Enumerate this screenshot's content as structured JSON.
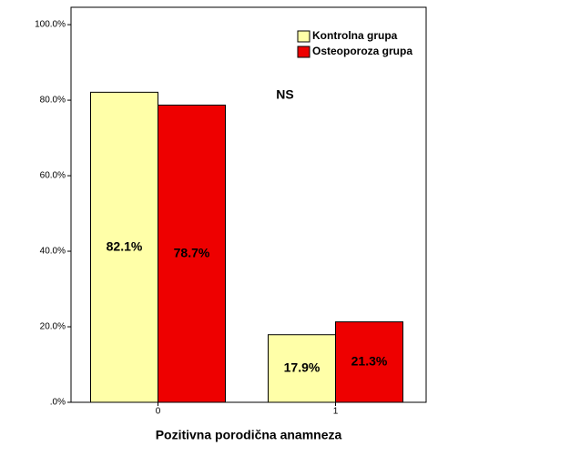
{
  "chart_data": {
    "type": "bar",
    "xlabel": "Pozitivna porodična anamneza",
    "annotation": "NS",
    "categories": [
      "0",
      "1"
    ],
    "series": [
      {
        "name": "Kontrolna grupa",
        "color": "#ffffa8",
        "values": [
          82.1,
          17.9
        ],
        "value_labels": [
          "82.1%",
          "17.9%"
        ]
      },
      {
        "name": "Osteoporoza grupa",
        "color": "#ee0000",
        "values": [
          78.7,
          21.3
        ],
        "value_labels": [
          "78.7%",
          "21.3%"
        ]
      }
    ],
    "ylim": [
      0,
      104.6
    ],
    "yticks": [
      {
        "value": 0,
        "label": ".0%"
      },
      {
        "value": 20,
        "label": "20.0%"
      },
      {
        "value": 40,
        "label": "40.0%"
      },
      {
        "value": 60,
        "label": "60.0%"
      },
      {
        "value": 80,
        "label": "80.0%"
      },
      {
        "value": 100,
        "label": "100.0%"
      }
    ],
    "legend": "top-right"
  }
}
